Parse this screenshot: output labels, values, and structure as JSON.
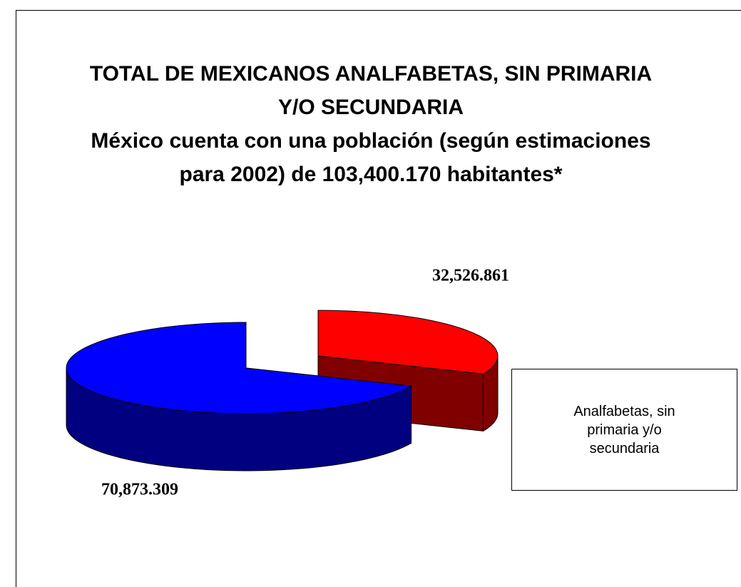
{
  "chart_data": {
    "type": "pie",
    "title": "TOTAL DE MEXICANOS ANALFABETAS, SIN PRIMARIA Y/O SECUNDARIA",
    "subtitle": "México cuenta con una población (según estimaciones para 2002) de 103,400.170 habitantes*",
    "categories": [
      "Analfabetas, sin primaria y/o secundaria",
      null
    ],
    "values": [
      32526861,
      70873309
    ],
    "value_labels": [
      "32,526.861",
      "70,873.309"
    ],
    "colors": [
      "#ff0000",
      "#0000ff"
    ],
    "side_colors": [
      "#800000",
      "#000080"
    ],
    "exploded": [
      true,
      false
    ]
  }
}
